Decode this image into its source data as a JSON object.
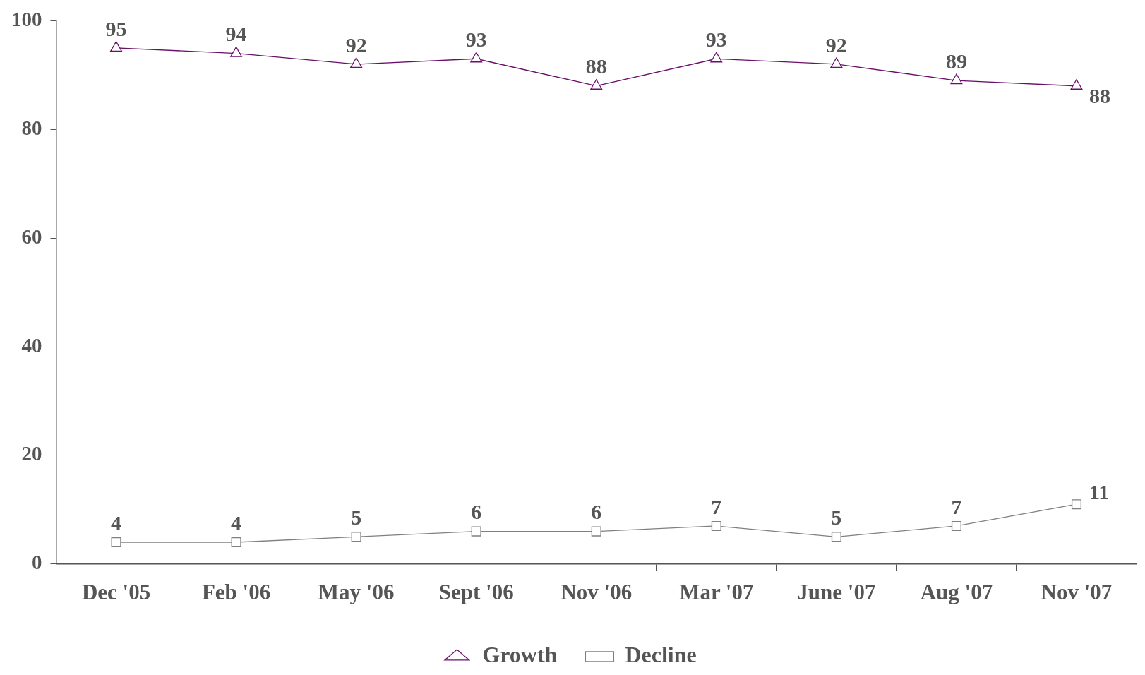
{
  "chart_data": {
    "type": "line",
    "categories": [
      "Dec '05",
      "Feb '06",
      "May '06",
      "Sept '06",
      "Nov '06",
      "Mar '07",
      "June '07",
      "Aug '07",
      "Nov '07"
    ],
    "series": [
      {
        "name": "Growth",
        "color": "#6a0f6a",
        "marker": "triangle",
        "values": [
          95,
          94,
          92,
          93,
          88,
          93,
          92,
          89,
          88
        ]
      },
      {
        "name": "Decline",
        "color": "#808080",
        "marker": "square",
        "values": [
          4,
          4,
          5,
          6,
          6,
          7,
          5,
          7,
          11
        ]
      }
    ],
    "ylim": [
      0,
      100
    ],
    "yticks": [
      0,
      20,
      40,
      60,
      80,
      100
    ],
    "grid": false,
    "legend": "bottom",
    "data_labels": true,
    "line_style": "solid"
  }
}
